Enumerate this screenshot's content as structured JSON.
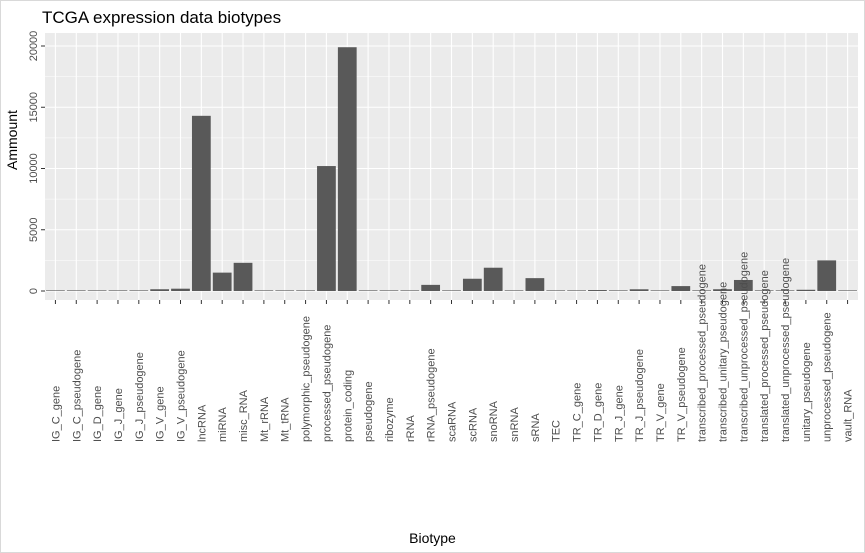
{
  "chart_data": {
    "type": "bar",
    "title": "TCGA expression data biotypes",
    "xlabel": "Biotype",
    "ylabel": "Ammount",
    "ylim": [
      -500,
      21300
    ],
    "yticks": [
      0,
      5000,
      10000,
      15000,
      20000
    ],
    "grid": true,
    "categories": [
      "IG_C_gene",
      "IG_C_pseudogene",
      "IG_D_gene",
      "IG_J_gene",
      "IG_J_pseudogene",
      "IG_V_gene",
      "IG_V_pseudogene",
      "lncRNA",
      "miRNA",
      "misc_RNA",
      "Mt_rRNA",
      "Mt_tRNA",
      "polymorphic_pseudogene",
      "processed_pseudogene",
      "protein_coding",
      "pseudogene",
      "ribozyme",
      "rRNA",
      "rRNA_pseudogene",
      "scaRNA",
      "scRNA",
      "snoRNA",
      "snRNA",
      "sRNA",
      "TEC",
      "TR_C_gene",
      "TR_D_gene",
      "TR_J_gene",
      "TR_J_pseudogene",
      "TR_V_gene",
      "TR_V_pseudogene",
      "transcribed_processed_pseudogene",
      "transcribed_unitary_pseudogene",
      "transcribed_unprocessed_pseudogene",
      "translated_processed_pseudogene",
      "translated_unprocessed_pseudogene",
      "unitary_pseudogene",
      "unprocessed_pseudogene",
      "vault_RNA"
    ],
    "values": [
      14,
      9,
      37,
      18,
      3,
      144,
      188,
      14300,
      1500,
      2300,
      2,
      22,
      50,
      10200,
      19900,
      1,
      8,
      47,
      500,
      49,
      1000,
      1900,
      5,
      1050,
      6,
      4,
      79,
      1,
      140,
      4,
      400,
      1,
      144,
      900,
      1,
      1,
      100,
      2500,
      1
    ],
    "bar_color": "#595959",
    "panel_color": "#ebebeb",
    "grid_color": "#ffffff"
  }
}
